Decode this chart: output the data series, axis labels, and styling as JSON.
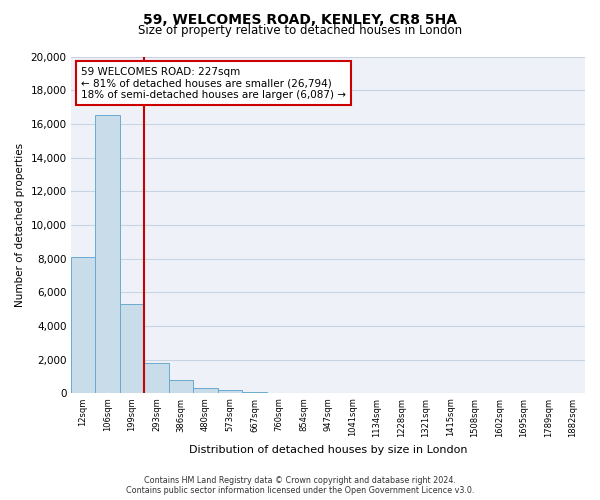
{
  "title": "59, WELCOMES ROAD, KENLEY, CR8 5HA",
  "subtitle": "Size of property relative to detached houses in London",
  "xlabel": "Distribution of detached houses by size in London",
  "ylabel": "Number of detached properties",
  "bar_color": "#c9dcea",
  "bar_edge_color": "#6aaacf",
  "background_color": "#eef2f8",
  "fig_background": "#ffffff",
  "grid_color": "#c8d4e4",
  "categories": [
    "12sqm",
    "106sqm",
    "199sqm",
    "293sqm",
    "386sqm",
    "480sqm",
    "573sqm",
    "667sqm",
    "760sqm",
    "854sqm",
    "947sqm",
    "1041sqm",
    "1134sqm",
    "1228sqm",
    "1321sqm",
    "1415sqm",
    "1508sqm",
    "1602sqm",
    "1695sqm",
    "1789sqm",
    "1882sqm"
  ],
  "values": [
    8100,
    16500,
    5300,
    1800,
    800,
    300,
    200,
    100,
    50,
    0,
    0,
    0,
    0,
    0,
    0,
    0,
    0,
    0,
    0,
    0,
    0
  ],
  "ylim": [
    0,
    20000
  ],
  "yticks": [
    0,
    2000,
    4000,
    6000,
    8000,
    10000,
    12000,
    14000,
    16000,
    18000,
    20000
  ],
  "property_line_color": "#cc0000",
  "annotation_title": "59 WELCOMES ROAD: 227sqm",
  "annotation_line1": "← 81% of detached houses are smaller (26,794)",
  "annotation_line2": "18% of semi-detached houses are larger (6,087) →",
  "annotation_box_edge": "#cc0000",
  "footer_line1": "Contains HM Land Registry data © Crown copyright and database right 2024.",
  "footer_line2": "Contains public sector information licensed under the Open Government Licence v3.0."
}
